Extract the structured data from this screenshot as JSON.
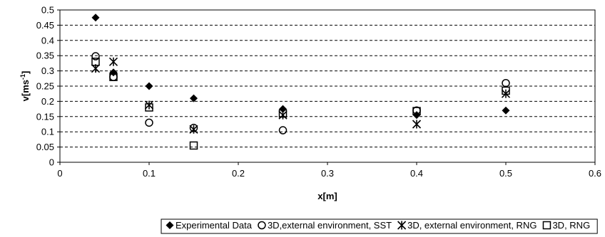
{
  "chart_data": {
    "type": "scatter",
    "title": "",
    "xlabel": "x[m]",
    "ylabel_main": "v[ms",
    "ylabel_sup": "-1",
    "ylabel_end": "]",
    "xlim": [
      0,
      0.6
    ],
    "ylim": [
      0,
      0.5
    ],
    "xticks": [
      "0",
      "0.1",
      "0.2",
      "0.3",
      "0.4",
      "0.5",
      "0.6"
    ],
    "yticks": [
      "0",
      "0.05",
      "0.1",
      "0.15",
      "0.2",
      "0.25",
      "0.3",
      "0.35",
      "0.4",
      "0.45",
      "0.5"
    ],
    "grid": "horizontal-dashed",
    "legend_position": "bottom",
    "series": [
      {
        "name": "Experimental Data",
        "marker": "diamond",
        "points": [
          [
            0.04,
            0.475
          ],
          [
            0.06,
            0.295
          ],
          [
            0.1,
            0.25
          ],
          [
            0.15,
            0.21
          ],
          [
            0.25,
            0.175
          ],
          [
            0.4,
            0.155
          ],
          [
            0.5,
            0.17
          ]
        ]
      },
      {
        "name": "3D,external environment, SST",
        "marker": "circle",
        "points": [
          [
            0.04,
            0.348
          ],
          [
            0.06,
            0.28
          ],
          [
            0.1,
            0.13
          ],
          [
            0.15,
            0.113
          ],
          [
            0.25,
            0.105
          ],
          [
            0.4,
            0.17
          ],
          [
            0.5,
            0.26
          ]
        ]
      },
      {
        "name": "3D, external environment, RNG",
        "marker": "asterisk",
        "points": [
          [
            0.04,
            0.308
          ],
          [
            0.06,
            0.33
          ],
          [
            0.1,
            0.188
          ],
          [
            0.15,
            0.108
          ],
          [
            0.25,
            0.155
          ],
          [
            0.4,
            0.125
          ],
          [
            0.5,
            0.225
          ]
        ]
      },
      {
        "name": "3D, RNG",
        "marker": "square",
        "points": [
          [
            0.04,
            0.33
          ],
          [
            0.06,
            0.28
          ],
          [
            0.1,
            0.18
          ],
          [
            0.15,
            0.055
          ],
          [
            0.25,
            0.16
          ],
          [
            0.4,
            0.168
          ],
          [
            0.5,
            0.235
          ]
        ]
      }
    ]
  }
}
